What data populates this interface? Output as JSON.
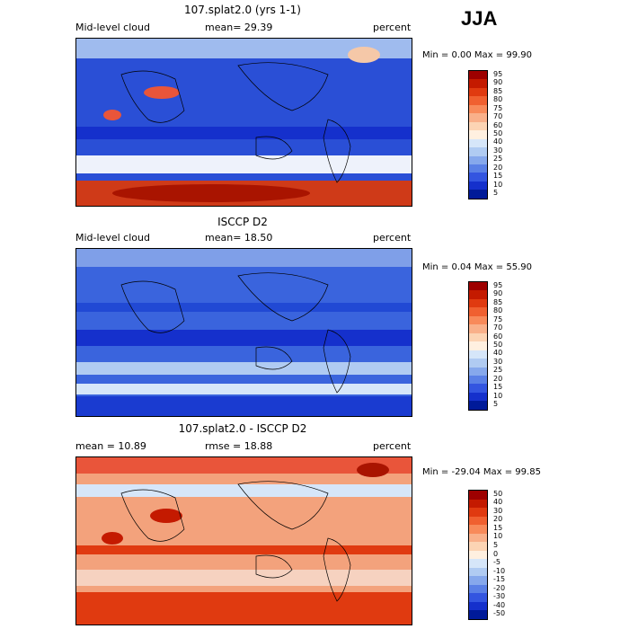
{
  "season": "JJA",
  "panels": [
    {
      "title": "107.splat2.0 (yrs 1-1)",
      "left_label": "Mid-level cloud",
      "mid_label": "mean=  29.39",
      "right_label": "percent",
      "minmax": "Min =    0.00 Max =   99.90",
      "colorbar_ticks": [
        "95",
        "90",
        "85",
        "80",
        "75",
        "70",
        "60",
        "50",
        "40",
        "30",
        "25",
        "20",
        "15",
        "10",
        "5"
      ],
      "colorbar_colors": [
        "#9e0000",
        "#c41a00",
        "#e03a10",
        "#f06030",
        "#f88a5a",
        "#f9b08a",
        "#fcd4b4",
        "#fff0e0",
        "#d6e6f9",
        "#b0cbf2",
        "#86a8ec",
        "#5a80e6",
        "#3355e0",
        "#1530cc",
        "#001a99"
      ],
      "base_color": "#1f44cc"
    },
    {
      "title": "ISCCP D2",
      "left_label": "Mid-level cloud",
      "mid_label": "mean=  18.50",
      "right_label": "percent",
      "minmax": "Min =   0.04 Max =  55.90",
      "colorbar_ticks": [
        "95",
        "90",
        "85",
        "80",
        "75",
        "70",
        "60",
        "50",
        "40",
        "30",
        "25",
        "20",
        "15",
        "10",
        "5"
      ],
      "colorbar_colors": [
        "#9e0000",
        "#c41a00",
        "#e03a10",
        "#f06030",
        "#f88a5a",
        "#f9b08a",
        "#fcd4b4",
        "#fff0e0",
        "#d6e6f9",
        "#b0cbf2",
        "#86a8ec",
        "#5a80e6",
        "#3355e0",
        "#1530cc",
        "#001a99"
      ],
      "base_color": "#3a64dd"
    },
    {
      "title": "107.splat2.0 - ISCCP D2",
      "left_label": "mean =   10.89",
      "mid_label": "rmse =   18.88",
      "right_label": "percent",
      "minmax": "Min = -29.04 Max =   99.85",
      "colorbar_ticks": [
        "50",
        "40",
        "30",
        "20",
        "15",
        "10",
        "5",
        "0",
        "-5",
        "-10",
        "-15",
        "-20",
        "-30",
        "-40",
        "-50"
      ],
      "colorbar_colors": [
        "#9e0000",
        "#c41a00",
        "#e03a10",
        "#f06030",
        "#f88a5a",
        "#f9b08a",
        "#fcd4b4",
        "#fff0e0",
        "#d6e6f9",
        "#b0cbf2",
        "#86a8ec",
        "#5a80e6",
        "#3355e0",
        "#1530cc",
        "#001a99"
      ],
      "base_color": "#f3a27c"
    }
  ]
}
